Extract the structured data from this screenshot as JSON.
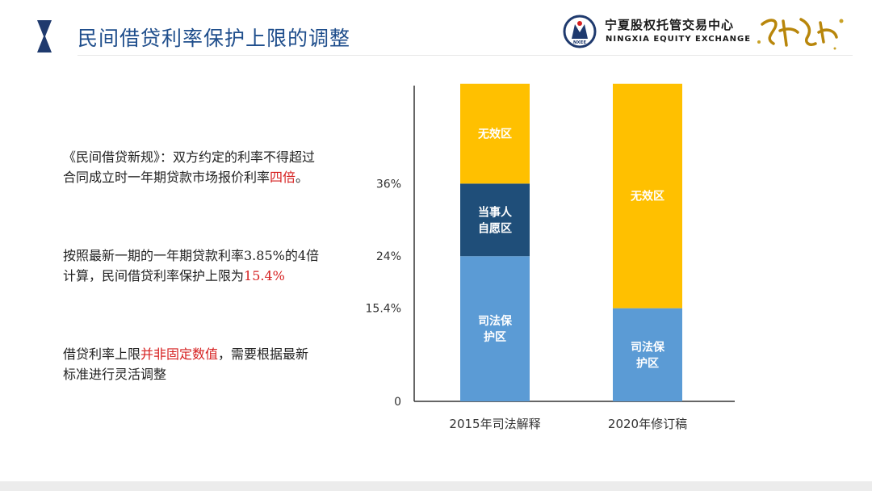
{
  "header": {
    "title": "民间借贷利率保护上限的调整",
    "org_name_cn": "宁夏股权托管交易中心",
    "org_name_en": "NINGXIA EQUITY EXCHANGE",
    "logo_text": "NXEE",
    "brand_calligraphy": "宁在慧听"
  },
  "paragraphs": {
    "p1": {
      "pre": "《民间借贷新规》：双方约定的利率不得超过合同成立时一年期贷款市场报价利率",
      "highlight": "四倍",
      "post": "。"
    },
    "p2": {
      "pre": "按照最新一期的一年期贷款利率3.85%的4倍计算，民间借贷利率保护上限为",
      "highlight": "15.4%",
      "post": ""
    },
    "p3": {
      "pre": "借贷利率上限",
      "highlight": "并非固定数值",
      "post": "，需要根据最新标准进行灵活调整"
    }
  },
  "colors": {
    "title": "#1f4e8c",
    "highlight": "#d62020",
    "judicial": "#5b9bd5",
    "voluntary": "#1f4e79",
    "invalid": "#ffc000"
  },
  "chart_data": {
    "type": "bar",
    "stacked": true,
    "categories": [
      "2015年司法解释",
      "2020年修订稿"
    ],
    "y_ticks": [
      {
        "value": 0,
        "label": "0"
      },
      {
        "value": 15.4,
        "label": "15.4%"
      },
      {
        "value": 24,
        "label": "24%"
      },
      {
        "value": 36,
        "label": "36%"
      }
    ],
    "ylim": [
      0,
      53
    ],
    "bars": [
      {
        "category": "2015年司法解释",
        "segments": [
          {
            "from": 0,
            "to": 24,
            "label": [
              "司法保",
              "护区"
            ],
            "color": "#5b9bd5"
          },
          {
            "from": 24,
            "to": 36,
            "label": [
              "当事人",
              "自愿区"
            ],
            "color": "#1f4e79"
          },
          {
            "from": 36,
            "to": 52.5,
            "label": [
              "无效区"
            ],
            "color": "#ffc000"
          }
        ]
      },
      {
        "category": "2020年修订稿",
        "segments": [
          {
            "from": 0,
            "to": 15.4,
            "label": [
              "司法保",
              "护区"
            ],
            "color": "#5b9bd5"
          },
          {
            "from": 15.4,
            "to": 52.5,
            "label": [
              "无效区"
            ],
            "color": "#ffc000"
          }
        ]
      }
    ],
    "grid": false,
    "legend": "none"
  }
}
